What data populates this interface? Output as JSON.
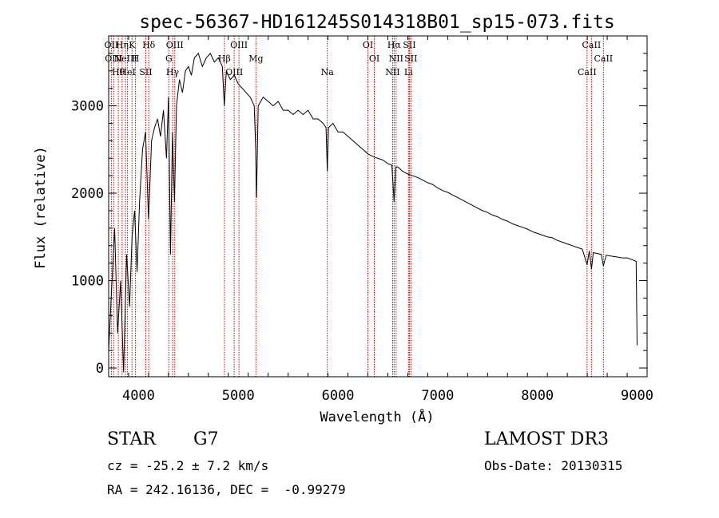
{
  "chart_data": {
    "type": "line",
    "title": "spec-56367-HD161245S014318B01_sp15-073.fits",
    "xlabel": "Wavelength (Å)",
    "ylabel": "Flux (relative)",
    "xlim": [
      3700,
      9100
    ],
    "ylim": [
      -100,
      3800
    ],
    "x_ticks": [
      4000,
      5000,
      6000,
      7000,
      8000,
      9000
    ],
    "y_ticks": [
      0,
      1000,
      2000,
      3000
    ],
    "grid": false,
    "series": [
      {
        "color": "#000000",
        "points": [
          [
            3700,
            200
          ],
          [
            3730,
            900
          ],
          [
            3760,
            1600
          ],
          [
            3790,
            400
          ],
          [
            3820,
            1000
          ],
          [
            3850,
            -50
          ],
          [
            3880,
            1300
          ],
          [
            3910,
            700
          ],
          [
            3935,
            1500
          ],
          [
            3960,
            1800
          ],
          [
            3985,
            1100
          ],
          [
            4010,
            1900
          ],
          [
            4040,
            2500
          ],
          [
            4070,
            2700
          ],
          [
            4100,
            1700
          ],
          [
            4130,
            2600
          ],
          [
            4160,
            2750
          ],
          [
            4190,
            2850
          ],
          [
            4220,
            2650
          ],
          [
            4250,
            2950
          ],
          [
            4280,
            2400
          ],
          [
            4300,
            3100
          ],
          [
            4320,
            1300
          ],
          [
            4340,
            2700
          ],
          [
            4360,
            1900
          ],
          [
            4380,
            3000
          ],
          [
            4410,
            3300
          ],
          [
            4440,
            3150
          ],
          [
            4470,
            3400
          ],
          [
            4500,
            3450
          ],
          [
            4530,
            3350
          ],
          [
            4560,
            3550
          ],
          [
            4600,
            3600
          ],
          [
            4640,
            3450
          ],
          [
            4680,
            3550
          ],
          [
            4720,
            3600
          ],
          [
            4760,
            3500
          ],
          [
            4800,
            3550
          ],
          [
            4840,
            3450
          ],
          [
            4860,
            3000
          ],
          [
            4880,
            3400
          ],
          [
            4920,
            3300
          ],
          [
            4960,
            3350
          ],
          [
            5000,
            3250
          ],
          [
            5040,
            3200
          ],
          [
            5080,
            3150
          ],
          [
            5120,
            3100
          ],
          [
            5160,
            3000
          ],
          [
            5175,
            2500
          ],
          [
            5183,
            1950
          ],
          [
            5200,
            3000
          ],
          [
            5250,
            3100
          ],
          [
            5300,
            3050
          ],
          [
            5350,
            3000
          ],
          [
            5400,
            3050
          ],
          [
            5450,
            2950
          ],
          [
            5500,
            2950
          ],
          [
            5550,
            2900
          ],
          [
            5600,
            2950
          ],
          [
            5650,
            2900
          ],
          [
            5700,
            2950
          ],
          [
            5750,
            2850
          ],
          [
            5800,
            2850
          ],
          [
            5850,
            2800
          ],
          [
            5880,
            2750
          ],
          [
            5893,
            2250
          ],
          [
            5905,
            2750
          ],
          [
            5950,
            2800
          ],
          [
            6000,
            2700
          ],
          [
            6050,
            2700
          ],
          [
            6100,
            2650
          ],
          [
            6150,
            2600
          ],
          [
            6200,
            2550
          ],
          [
            6250,
            2500
          ],
          [
            6300,
            2450
          ],
          [
            6350,
            2420
          ],
          [
            6400,
            2400
          ],
          [
            6450,
            2380
          ],
          [
            6500,
            2340
          ],
          [
            6540,
            2320
          ],
          [
            6563,
            1900
          ],
          [
            6580,
            2300
          ],
          [
            6600,
            2300
          ],
          [
            6650,
            2250
          ],
          [
            6700,
            2220
          ],
          [
            6750,
            2200
          ],
          [
            6800,
            2180
          ],
          [
            6850,
            2150
          ],
          [
            6900,
            2120
          ],
          [
            6950,
            2100
          ],
          [
            7000,
            2060
          ],
          [
            7050,
            2030
          ],
          [
            7100,
            2010
          ],
          [
            7150,
            1980
          ],
          [
            7200,
            1950
          ],
          [
            7250,
            1920
          ],
          [
            7300,
            1890
          ],
          [
            7350,
            1860
          ],
          [
            7400,
            1830
          ],
          [
            7450,
            1800
          ],
          [
            7500,
            1780
          ],
          [
            7550,
            1750
          ],
          [
            7600,
            1730
          ],
          [
            7650,
            1700
          ],
          [
            7700,
            1680
          ],
          [
            7750,
            1650
          ],
          [
            7800,
            1630
          ],
          [
            7850,
            1610
          ],
          [
            7900,
            1590
          ],
          [
            7950,
            1560
          ],
          [
            8000,
            1540
          ],
          [
            8050,
            1520
          ],
          [
            8100,
            1500
          ],
          [
            8150,
            1490
          ],
          [
            8200,
            1460
          ],
          [
            8250,
            1440
          ],
          [
            8300,
            1420
          ],
          [
            8350,
            1400
          ],
          [
            8400,
            1380
          ],
          [
            8450,
            1360
          ],
          [
            8498,
            1180
          ],
          [
            8520,
            1340
          ],
          [
            8542,
            1130
          ],
          [
            8560,
            1320
          ],
          [
            8600,
            1310
          ],
          [
            8640,
            1300
          ],
          [
            8662,
            1170
          ],
          [
            8690,
            1290
          ],
          [
            8740,
            1280
          ],
          [
            8800,
            1270
          ],
          [
            8850,
            1260
          ],
          [
            8900,
            1260
          ],
          [
            8950,
            1240
          ],
          [
            8990,
            1220
          ],
          [
            9000,
            260
          ]
        ]
      }
    ],
    "lines": [
      {
        "wavelength": 3727,
        "labels": [
          "OII"
        ]
      },
      {
        "wavelength": 3750,
        "labels": [
          "OIII"
        ]
      },
      {
        "wavelength": 3797,
        "labels": [
          "Hθ"
        ]
      },
      {
        "wavelength": 3835,
        "labels": [
          "Hη"
        ]
      },
      {
        "wavelength": 3869,
        "labels": [
          "NeIII"
        ]
      },
      {
        "wavelength": 3889,
        "labels": [
          "HeI"
        ]
      },
      {
        "wavelength": 3934,
        "labels": [
          "K"
        ]
      },
      {
        "wavelength": 3969,
        "labels": [
          "H"
        ]
      },
      {
        "wavelength": 4072,
        "labels": [
          "SII"
        ]
      },
      {
        "wavelength": 4102,
        "labels": [
          "Hδ"
        ]
      },
      {
        "wavelength": 4304,
        "labels": [
          "G"
        ]
      },
      {
        "wavelength": 4341,
        "labels": [
          "Hγ"
        ]
      },
      {
        "wavelength": 4363,
        "labels": [
          "OIII"
        ]
      },
      {
        "wavelength": 4861,
        "labels": [
          "Hβ"
        ]
      },
      {
        "wavelength": 4959,
        "labels": [
          "OIII"
        ]
      },
      {
        "wavelength": 5007,
        "labels": [
          "OIII"
        ]
      },
      {
        "wavelength": 5177,
        "labels": [
          "Mg"
        ]
      },
      {
        "wavelength": 5893,
        "labels": [
          "Na"
        ]
      },
      {
        "wavelength": 6300,
        "labels": [
          "OI"
        ]
      },
      {
        "wavelength": 6364,
        "labels": [
          "OI"
        ]
      },
      {
        "wavelength": 6548,
        "labels": [
          "NII"
        ]
      },
      {
        "wavelength": 6563,
        "labels": [
          "Hα"
        ]
      },
      {
        "wavelength": 6583,
        "labels": [
          "NII"
        ]
      },
      {
        "wavelength": 6707,
        "labels": [
          "Li"
        ]
      },
      {
        "wavelength": 6716,
        "labels": [
          "SII"
        ]
      },
      {
        "wavelength": 6731,
        "labels": [
          "SII"
        ]
      },
      {
        "wavelength": 8498,
        "labels": [
          "CaII"
        ]
      },
      {
        "wavelength": 8542,
        "labels": [
          "CaII"
        ]
      },
      {
        "wavelength": 8662,
        "labels": [
          "CaII"
        ]
      }
    ],
    "line_color": "#cc0000"
  },
  "info": {
    "object_class": "STAR",
    "subclass": "G7",
    "redshift_text": "cz = -25.2 ± 7.2 km/s",
    "coords_text": "RA = 242.16136, DEC =  -0.99279",
    "survey": "LAMOST DR3",
    "obs_date": "Obs-Date: 20130315"
  }
}
